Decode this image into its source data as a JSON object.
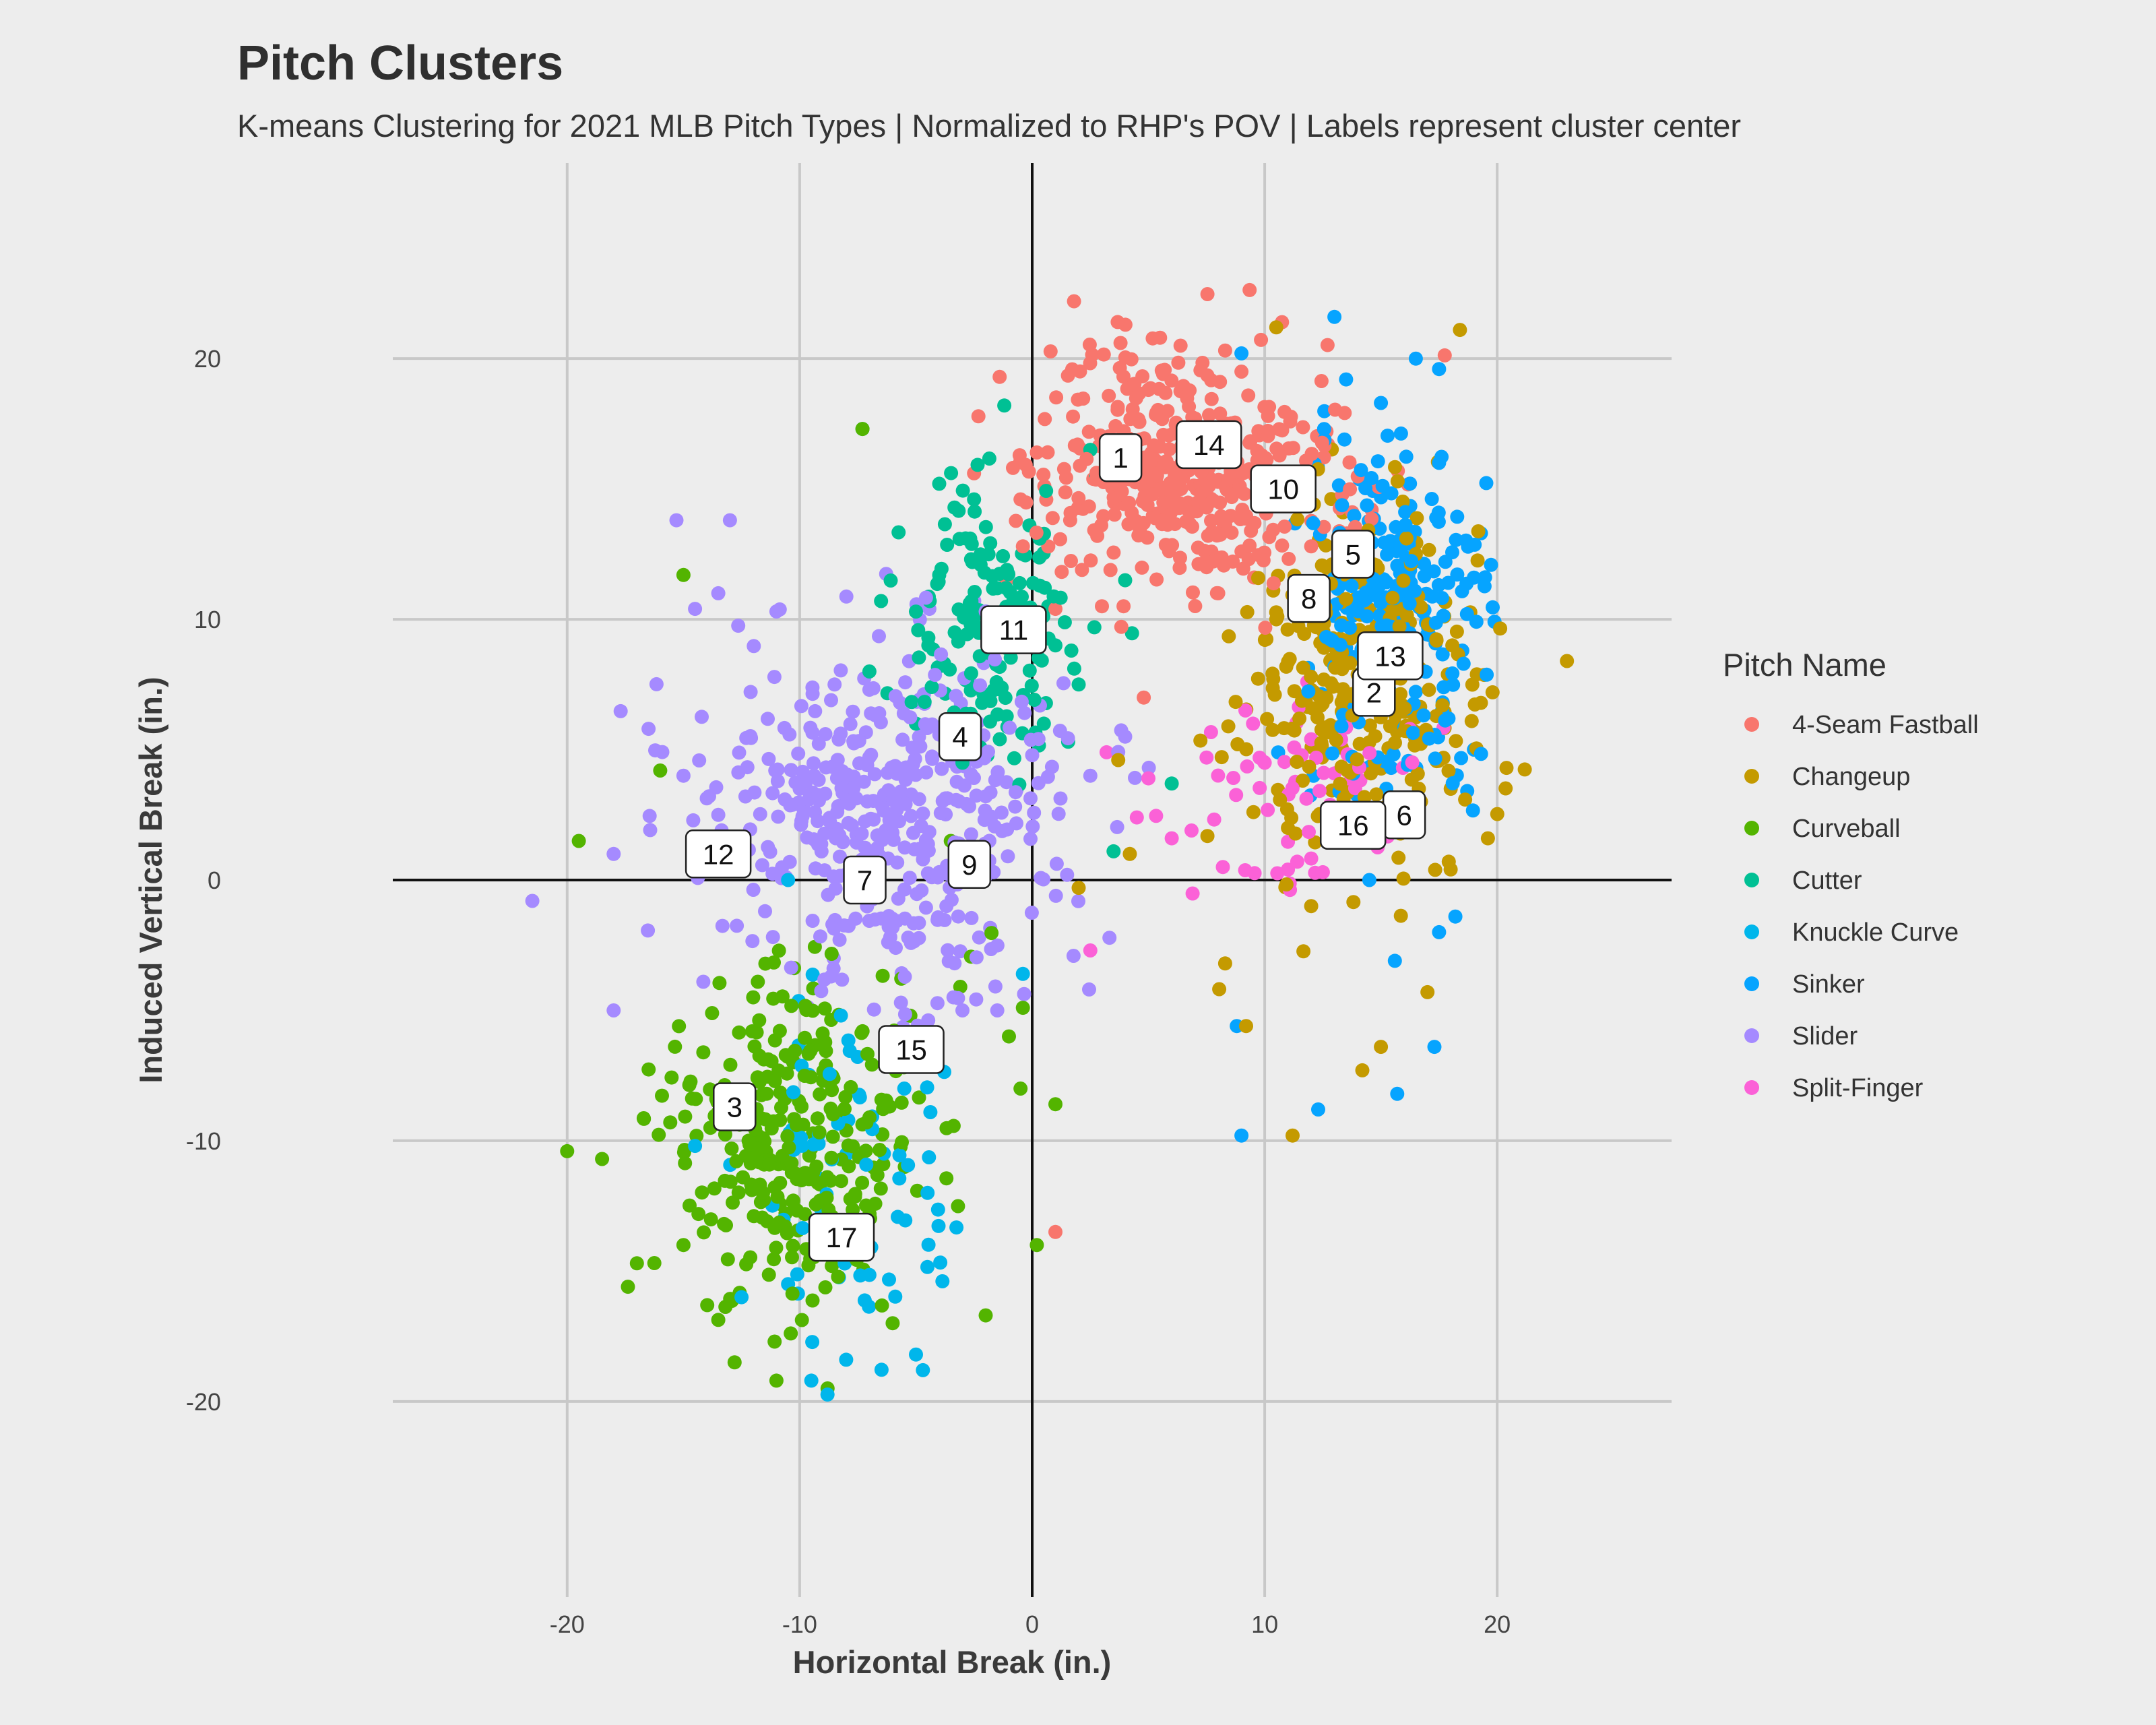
{
  "chart_data": {
    "type": "scatter",
    "title": "Pitch Clusters",
    "subtitle": "K-means Clustering for 2021 MLB Pitch Types | Normalized to RHP's POV | Labels represent cluster center",
    "xlabel": "Horizontal Break (in.)",
    "ylabel": "Induced Vertical Break (in.)",
    "xlim": [
      -27.5,
      27.5
    ],
    "ylim": [
      -27.5,
      27.5
    ],
    "x_ticks": [
      -20,
      -10,
      0,
      10,
      20
    ],
    "y_ticks": [
      -20,
      -10,
      0,
      10,
      20
    ],
    "x_tick_labels": [
      "-20",
      "-10",
      "0",
      "10",
      "20"
    ],
    "y_tick_labels": [
      "-20",
      "-10",
      "0",
      "10",
      "20"
    ],
    "grid": true,
    "zero_lines": true,
    "legend": {
      "title": "Pitch Name",
      "position": "right"
    },
    "series": [
      {
        "name": "4-Seam Fastball",
        "color": "#F8766D",
        "center": [
          6.5,
          15.8
        ],
        "spread": [
          3.2,
          2.1
        ],
        "count": 440,
        "points": [
          [
            1.8,
            22.2
          ],
          [
            5.5,
            20.8
          ],
          [
            3.8,
            20.6
          ],
          [
            -1.4,
            19.3
          ],
          [
            -2.5,
            15.6
          ],
          [
            -1.1,
            11.5
          ],
          [
            4.8,
            7.0
          ],
          [
            1.0,
            -13.5
          ],
          [
            8.0,
            11.0
          ],
          [
            2.8,
            13.2
          ],
          [
            1.0,
            10.4
          ],
          [
            -0.4,
            12.8
          ],
          [
            0.2,
            16.4
          ],
          [
            5.0,
            18.8
          ],
          [
            9.0,
            19.5
          ],
          [
            11.0,
            14.5
          ],
          [
            7.5,
            12.0
          ],
          [
            12.0,
            12.8
          ],
          [
            -0.5,
            14.6
          ],
          [
            3.0,
            10.5
          ]
        ]
      },
      {
        "name": "Changeup",
        "color": "#C49A00",
        "center": [
          14.2,
          7.3
        ],
        "spread": [
          2.5,
          3.4
        ],
        "count": 330,
        "points": [
          [
            10.5,
            21.2
          ],
          [
            23.0,
            8.4
          ],
          [
            19.8,
            7.2
          ],
          [
            20.4,
            4.3
          ],
          [
            19.6,
            1.6
          ],
          [
            11.2,
            -9.8
          ],
          [
            9.2,
            -5.6
          ],
          [
            14.2,
            -7.3
          ],
          [
            15.0,
            -6.4
          ],
          [
            17.0,
            -4.3
          ],
          [
            8.3,
            -3.2
          ],
          [
            3.7,
            4.6
          ],
          [
            4.2,
            1.0
          ],
          [
            2.0,
            -0.3
          ],
          [
            10.5,
            10.0
          ],
          [
            13.0,
            12.0
          ],
          [
            16.5,
            12.5
          ],
          [
            11.0,
            2.0
          ],
          [
            12.0,
            -1.0
          ],
          [
            18.0,
            3.5
          ]
        ]
      },
      {
        "name": "Curveball",
        "color": "#53B400",
        "center": [
          -10.5,
          -10.0
        ],
        "spread": [
          2.8,
          3.4
        ],
        "count": 300,
        "points": [
          [
            -20.0,
            -10.4
          ],
          [
            -19.5,
            1.5
          ],
          [
            -15.0,
            11.7
          ],
          [
            -16.0,
            4.2
          ],
          [
            -12.8,
            -18.5
          ],
          [
            -11.0,
            -19.2
          ],
          [
            -8.8,
            -19.5
          ],
          [
            -2.0,
            -16.7
          ],
          [
            0.2,
            -14.0
          ],
          [
            1.0,
            -8.6
          ],
          [
            -0.5,
            -8.0
          ],
          [
            -1.0,
            -6.0
          ],
          [
            -0.4,
            -4.9
          ],
          [
            -7.3,
            17.3
          ],
          [
            -3.5,
            1.5
          ],
          [
            -12.0,
            -4.5
          ],
          [
            -15.0,
            -14.0
          ],
          [
            -17.0,
            -14.7
          ],
          [
            -18.5,
            -10.7
          ],
          [
            -6.0,
            -17.0
          ]
        ]
      },
      {
        "name": "Cutter",
        "color": "#00C094",
        "center": [
          -1.5,
          9.5
        ],
        "spread": [
          1.8,
          2.6
        ],
        "count": 160,
        "points": [
          [
            -7.3,
            17.3
          ],
          [
            -1.2,
            18.2
          ],
          [
            -4.0,
            15.2
          ],
          [
            -2.5,
            14.6
          ],
          [
            -4.0,
            11.7
          ],
          [
            -6.5,
            10.7
          ],
          [
            -7.0,
            8.0
          ],
          [
            -5.0,
            6.0
          ],
          [
            0.5,
            6.0
          ],
          [
            2.0,
            7.5
          ],
          [
            4.0,
            11.5
          ],
          [
            2.5,
            16.5
          ],
          [
            1.0,
            9.0
          ],
          [
            -3.0,
            4.5
          ],
          [
            3.5,
            1.1
          ],
          [
            6.0,
            3.7
          ]
        ]
      },
      {
        "name": "Knuckle Curve",
        "color": "#00B6EB",
        "center": [
          -7.5,
          -11.5
        ],
        "spread": [
          2.2,
          3.5
        ],
        "count": 70,
        "points": [
          [
            -9.5,
            -19.2
          ],
          [
            -8.0,
            -18.4
          ],
          [
            -5.0,
            -18.2
          ],
          [
            -4.7,
            -18.8
          ],
          [
            -12.5,
            -16.0
          ],
          [
            -10.5,
            -15.5
          ],
          [
            -4.5,
            -12.0
          ],
          [
            -5.5,
            -8.0
          ],
          [
            -6.0,
            -6.0
          ],
          [
            -0.4,
            -3.6
          ],
          [
            -10.5,
            0.0
          ],
          [
            -14.5,
            -10.2
          ]
        ]
      },
      {
        "name": "Sinker",
        "color": "#06A4FF",
        "center": [
          15.5,
          10.0
        ],
        "spread": [
          2.0,
          3.3
        ],
        "count": 270,
        "points": [
          [
            13.0,
            21.6
          ],
          [
            16.5,
            20.0
          ],
          [
            17.5,
            19.6
          ],
          [
            13.5,
            19.2
          ],
          [
            15.0,
            18.3
          ],
          [
            9.0,
            20.2
          ],
          [
            17.5,
            16.0
          ],
          [
            19.3,
            13.3
          ],
          [
            19.0,
            11.6
          ],
          [
            18.5,
            8.8
          ],
          [
            19.0,
            5.0
          ],
          [
            18.2,
            -1.4
          ],
          [
            17.3,
            -6.4
          ],
          [
            15.7,
            -8.2
          ],
          [
            12.3,
            -8.8
          ],
          [
            9.0,
            -9.8
          ],
          [
            8.8,
            -5.6
          ],
          [
            15.6,
            -3.1
          ],
          [
            17.5,
            -2.0
          ],
          [
            14.5,
            0.0
          ]
        ]
      },
      {
        "name": "Slider",
        "color": "#A58AFF",
        "center": [
          -6.0,
          2.5
        ],
        "spread": [
          3.8,
          3.3
        ],
        "count": 450,
        "points": [
          [
            -21.5,
            -0.8
          ],
          [
            -15.3,
            13.8
          ],
          [
            -13.0,
            13.8
          ],
          [
            -14.5,
            10.4
          ],
          [
            -13.5,
            11.0
          ],
          [
            -11.0,
            10.3
          ],
          [
            -16.5,
            5.8
          ],
          [
            -15.0,
            4.0
          ],
          [
            -18.0,
            -5.0
          ],
          [
            -8.5,
            7.5
          ],
          [
            -7.0,
            7.3
          ],
          [
            -3.0,
            -5.0
          ],
          [
            -1.5,
            -5.0
          ],
          [
            4.0,
            5.5
          ],
          [
            2.5,
            4.0
          ],
          [
            1.5,
            0.2
          ],
          [
            -10.0,
            3.5
          ],
          [
            -13.5,
            2.5
          ],
          [
            -18.0,
            1.0
          ],
          [
            -2.0,
            10.3
          ]
        ]
      },
      {
        "name": "Split-Finger",
        "color": "#FB61D7",
        "center": [
          12.0,
          3.5
        ],
        "spread": [
          2.5,
          2.0
        ],
        "count": 60,
        "points": [
          [
            3.2,
            4.9
          ],
          [
            5.0,
            3.9
          ],
          [
            7.5,
            4.7
          ],
          [
            11.0,
            0.4
          ],
          [
            12.5,
            0.3
          ],
          [
            8.2,
            0.5
          ],
          [
            2.5,
            -2.7
          ],
          [
            6.0,
            1.6
          ],
          [
            9.5,
            6.0
          ],
          [
            12.0,
            5.4
          ],
          [
            4.5,
            2.4
          ],
          [
            10.0,
            4.5
          ]
        ]
      }
    ],
    "cluster_centers": [
      {
        "label": "1",
        "x": 3.8,
        "y": 16.2
      },
      {
        "label": "2",
        "x": 14.7,
        "y": 7.2
      },
      {
        "label": "3",
        "x": -12.8,
        "y": -8.7
      },
      {
        "label": "4",
        "x": -3.1,
        "y": 5.5
      },
      {
        "label": "5",
        "x": 13.8,
        "y": 12.5
      },
      {
        "label": "6",
        "x": 16.0,
        "y": 2.5
      },
      {
        "label": "7",
        "x": -7.2,
        "y": 0.0
      },
      {
        "label": "8",
        "x": 11.9,
        "y": 10.8
      },
      {
        "label": "9",
        "x": -2.7,
        "y": 0.6
      },
      {
        "label": "10",
        "x": 10.8,
        "y": 15.0
      },
      {
        "label": "11",
        "x": -0.8,
        "y": 9.6
      },
      {
        "label": "12",
        "x": -13.5,
        "y": 1.0
      },
      {
        "label": "13",
        "x": 15.4,
        "y": 8.6
      },
      {
        "label": "14",
        "x": 7.6,
        "y": 16.7
      },
      {
        "label": "15",
        "x": -5.2,
        "y": -6.5
      },
      {
        "label": "16",
        "x": 13.8,
        "y": 2.1
      },
      {
        "label": "17",
        "x": -8.2,
        "y": -13.7
      }
    ]
  }
}
